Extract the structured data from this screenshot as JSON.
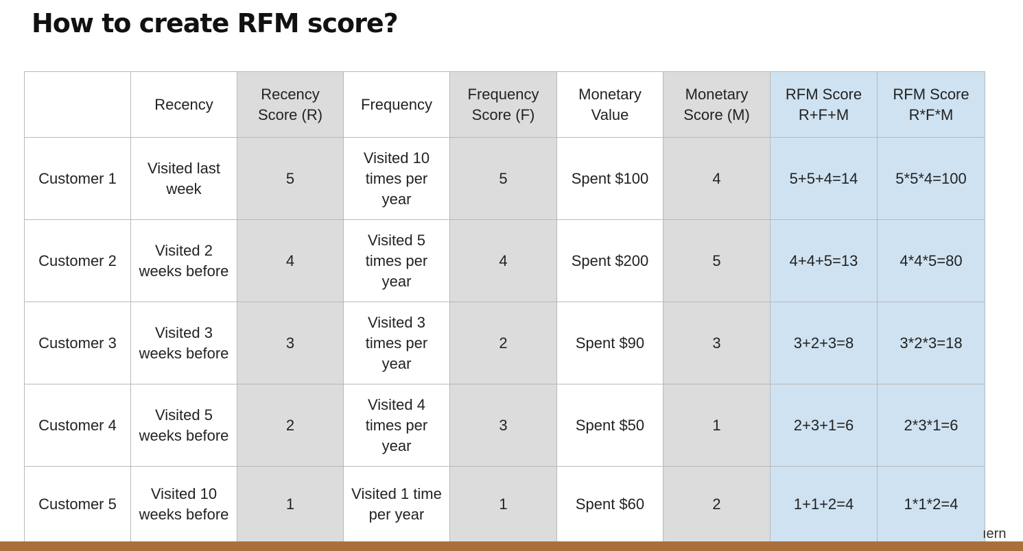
{
  "title": "How to create RFM score?",
  "table": {
    "headers": [
      "",
      "Recency",
      "Recency Score (R)",
      "Frequency",
      "Frequency Score (F)",
      "Monetary Value",
      "Monetary Score (M)",
      "RFM Score R+F+M",
      "RFM Score R*F*M"
    ],
    "rows": [
      [
        "Customer 1",
        "Visited last week",
        "5",
        "Visited 10 times per year",
        "5",
        "Spent $100",
        "4",
        "5+5+4=14",
        "5*5*4=100"
      ],
      [
        "Customer 2",
        "Visited 2 weeks before",
        "4",
        "Visited 5 times per year",
        "4",
        "Spent $200",
        "5",
        "4+4+5=13",
        "4*4*5=80"
      ],
      [
        "Customer 3",
        "Visited 3 weeks before",
        "3",
        "Visited 3 times per year",
        "2",
        "Spent $90",
        "3",
        "3+2+3=8",
        "3*2*3=18"
      ],
      [
        "Customer 4",
        "Visited 5 weeks before",
        "2",
        "Visited 4 times per year",
        "3",
        "Spent $50",
        "1",
        "2+3+1=6",
        "2*3*1=6"
      ],
      [
        "Customer 5",
        "Visited 10 weeks before",
        "1",
        "Visited 1 time per year",
        "1",
        "Spent $60",
        "2",
        "1+1+2=4",
        "1*1*2=4"
      ]
    ]
  },
  "corner_text": "ıern",
  "colors": {
    "score_column_bg": "#dcdcdc",
    "rfm_column_bg": "#cfe2f1",
    "bottom_bar": "#a9703b"
  }
}
